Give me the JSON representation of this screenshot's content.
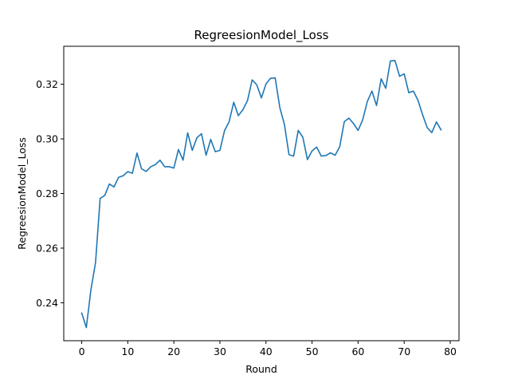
{
  "chart_data": {
    "type": "line",
    "title": "RegreesionModel_Loss",
    "xlabel": "Round",
    "ylabel": "RegreesionModel_Loss",
    "xlim": [
      -3.9,
      81.9
    ],
    "ylim": [
      0.2261,
      0.3339
    ],
    "xticks": [
      0,
      10,
      20,
      30,
      40,
      50,
      60,
      70,
      80
    ],
    "yticks": [
      0.24,
      0.26,
      0.28,
      0.3,
      0.32
    ],
    "ytick_labels": [
      "0.24",
      "0.26",
      "0.28",
      "0.30",
      "0.32"
    ],
    "grid": false,
    "legend": "none",
    "series_color": "#1f77b4",
    "series": [
      {
        "x": [
          0,
          1,
          2,
          3,
          4,
          5,
          6,
          7,
          8,
          9,
          10,
          11,
          12,
          13,
          14,
          15,
          16,
          17,
          18,
          19,
          20,
          21,
          22,
          23,
          24,
          25,
          26,
          27,
          28,
          29,
          30,
          31,
          32,
          33,
          34,
          35,
          36,
          37,
          38,
          39,
          40,
          41,
          42,
          43,
          44,
          45,
          46,
          47,
          48,
          49,
          50,
          51,
          52,
          53,
          54,
          55,
          56,
          57,
          58,
          59,
          60,
          61,
          62,
          63,
          64,
          65,
          66,
          67,
          68,
          69,
          70,
          71,
          72,
          73,
          74,
          75,
          76,
          77,
          78
        ],
        "values": [
          0.2362,
          0.2309,
          0.2448,
          0.2547,
          0.2782,
          0.2793,
          0.2835,
          0.2824,
          0.2859,
          0.2865,
          0.288,
          0.2874,
          0.2948,
          0.289,
          0.2881,
          0.2898,
          0.2906,
          0.2922,
          0.2898,
          0.2898,
          0.2893,
          0.2961,
          0.2922,
          0.3022,
          0.2958,
          0.3004,
          0.3019,
          0.294,
          0.2998,
          0.2953,
          0.2958,
          0.303,
          0.3063,
          0.3134,
          0.3085,
          0.3107,
          0.3141,
          0.3216,
          0.3198,
          0.315,
          0.3201,
          0.3222,
          0.3223,
          0.3115,
          0.3053,
          0.2942,
          0.2937,
          0.3031,
          0.3006,
          0.2924,
          0.2956,
          0.297,
          0.2937,
          0.2939,
          0.2949,
          0.294,
          0.2971,
          0.3063,
          0.3076,
          0.3056,
          0.3031,
          0.307,
          0.3137,
          0.3175,
          0.3122,
          0.322,
          0.3185,
          0.3285,
          0.3287,
          0.3229,
          0.3238,
          0.3169,
          0.3175,
          0.3141,
          0.3088,
          0.3041,
          0.3023,
          0.3062,
          0.3033
        ]
      }
    ]
  }
}
